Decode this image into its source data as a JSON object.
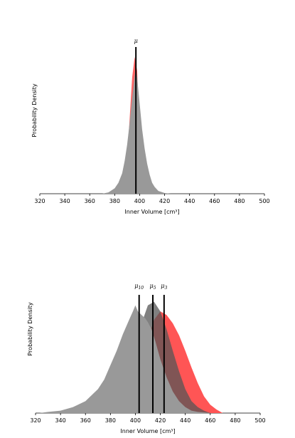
{
  "chart_data": [
    {
      "type": "area",
      "xlabel": "Inner Volume [cm³]",
      "ylabel": "Probability Density",
      "xlim": [
        320,
        500
      ],
      "xticks": [
        "320",
        "340",
        "360",
        "380",
        "400",
        "420",
        "440",
        "460",
        "480",
        "500"
      ],
      "grid": false,
      "series": [
        {
          "color": "#ff6666",
          "x": [
            390,
            392,
            394,
            396,
            398,
            399,
            400,
            401
          ],
          "y": [
            0.25,
            0.55,
            0.85,
            1.0,
            0.9,
            0.7,
            0.4,
            0.15
          ]
        },
        {
          "color": "#999999",
          "x": [
            370,
            375,
            380,
            383,
            386,
            388,
            390,
            392,
            394,
            396,
            397,
            398,
            400,
            402,
            404,
            406,
            408,
            410,
            412,
            415,
            420,
            425
          ],
          "y": [
            0.0,
            0.01,
            0.04,
            0.08,
            0.15,
            0.24,
            0.36,
            0.52,
            0.7,
            0.86,
            0.92,
            0.85,
            0.66,
            0.47,
            0.33,
            0.22,
            0.14,
            0.08,
            0.05,
            0.02,
            0.005,
            0.0
          ]
        }
      ],
      "vlines": [
        {
          "label": "μ",
          "x": 397
        }
      ]
    },
    {
      "type": "area",
      "xlabel": "Inner Volume [cm³]",
      "ylabel": "Probability Density",
      "xlim": [
        320,
        500
      ],
      "xticks": [
        "320",
        "340",
        "360",
        "380",
        "400",
        "420",
        "440",
        "460",
        "480",
        "500"
      ],
      "grid": false,
      "series": [
        {
          "color": "#ff5555",
          "x": [
            380,
            390,
            400,
            405,
            410,
            415,
            420,
            425,
            430,
            435,
            440,
            445,
            450,
            455,
            460,
            465,
            470
          ],
          "y": [
            0.02,
            0.1,
            0.3,
            0.45,
            0.62,
            0.78,
            0.85,
            0.82,
            0.75,
            0.65,
            0.52,
            0.38,
            0.25,
            0.14,
            0.07,
            0.03,
            0.0
          ]
        },
        {
          "color": "#555555",
          "x": [
            370,
            380,
            390,
            395,
            400,
            405,
            410,
            415,
            420,
            425,
            430,
            435,
            440,
            445,
            450,
            455,
            460
          ],
          "y": [
            0.02,
            0.08,
            0.22,
            0.35,
            0.55,
            0.75,
            0.9,
            0.93,
            0.85,
            0.7,
            0.52,
            0.35,
            0.2,
            0.1,
            0.05,
            0.02,
            0.0
          ]
        },
        {
          "color": "#999999",
          "x": [
            323,
            330,
            340,
            350,
            360,
            370,
            375,
            380,
            385,
            390,
            395,
            398,
            400,
            402,
            405,
            408,
            410,
            413,
            416,
            420,
            425,
            430,
            435,
            440,
            445,
            450,
            455,
            460
          ],
          "y": [
            0.0,
            0.01,
            0.02,
            0.05,
            0.1,
            0.2,
            0.28,
            0.4,
            0.52,
            0.66,
            0.78,
            0.85,
            0.9,
            0.85,
            0.82,
            0.79,
            0.76,
            0.7,
            0.6,
            0.45,
            0.3,
            0.18,
            0.1,
            0.05,
            0.02,
            0.01,
            0.005,
            0.0
          ]
        }
      ],
      "vlines": [
        {
          "label": "μ10",
          "x": 403
        },
        {
          "label": "μ5",
          "x": 414
        },
        {
          "label": "μ3",
          "x": 423
        }
      ]
    }
  ]
}
